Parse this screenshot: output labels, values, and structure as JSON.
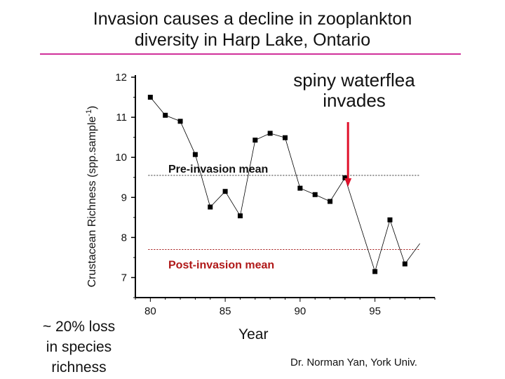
{
  "slide": {
    "title_line1": "Invasion causes a decline in zooplankton",
    "title_line2": "diversity in Harp Lake, Ontario",
    "invades_line1": "spiny waterflea",
    "invades_line2": "invades",
    "loss_line1": "~ 20% loss",
    "loss_line2": "in species",
    "loss_line3": "richness",
    "credit": "Dr. Norman Yan, York Univ.",
    "rule_color": "#d0309a"
  },
  "chart_data": {
    "type": "line",
    "xlabel": "Year",
    "ylabel": "Crustacean Richness (spp.sample",
    "ylabel_sup": "-1",
    "ylabel_close": ")",
    "xlim": [
      79,
      99
    ],
    "ylim": [
      6.5,
      12
    ],
    "xticks": [
      80,
      85,
      90,
      95
    ],
    "yticks": [
      7,
      8,
      9,
      10,
      11,
      12
    ],
    "grid": false,
    "series": [
      {
        "x": [
          80,
          81,
          82,
          83,
          84,
          85,
          86,
          87,
          88,
          89,
          90,
          91,
          92,
          93,
          95,
          96,
          97
        ],
        "y": [
          11.5,
          11.05,
          10.9,
          10.07,
          8.76,
          9.15,
          8.54,
          10.43,
          10.6,
          10.49,
          9.23,
          9.07,
          8.9,
          9.49,
          7.15,
          8.44,
          7.34
        ],
        "marker": "square",
        "color": "#000000"
      }
    ],
    "reference_lines": [
      {
        "label": "Pre-invasion mean",
        "y": 9.55,
        "x_range": [
          80,
          98
        ],
        "color": "#333333"
      },
      {
        "label": "Post-invasion mean",
        "y": 7.7,
        "x_range": [
          80,
          98
        ],
        "color": "#a01010"
      }
    ],
    "invasion_arrow": {
      "x": 93.2,
      "color": "#e0102a"
    }
  }
}
